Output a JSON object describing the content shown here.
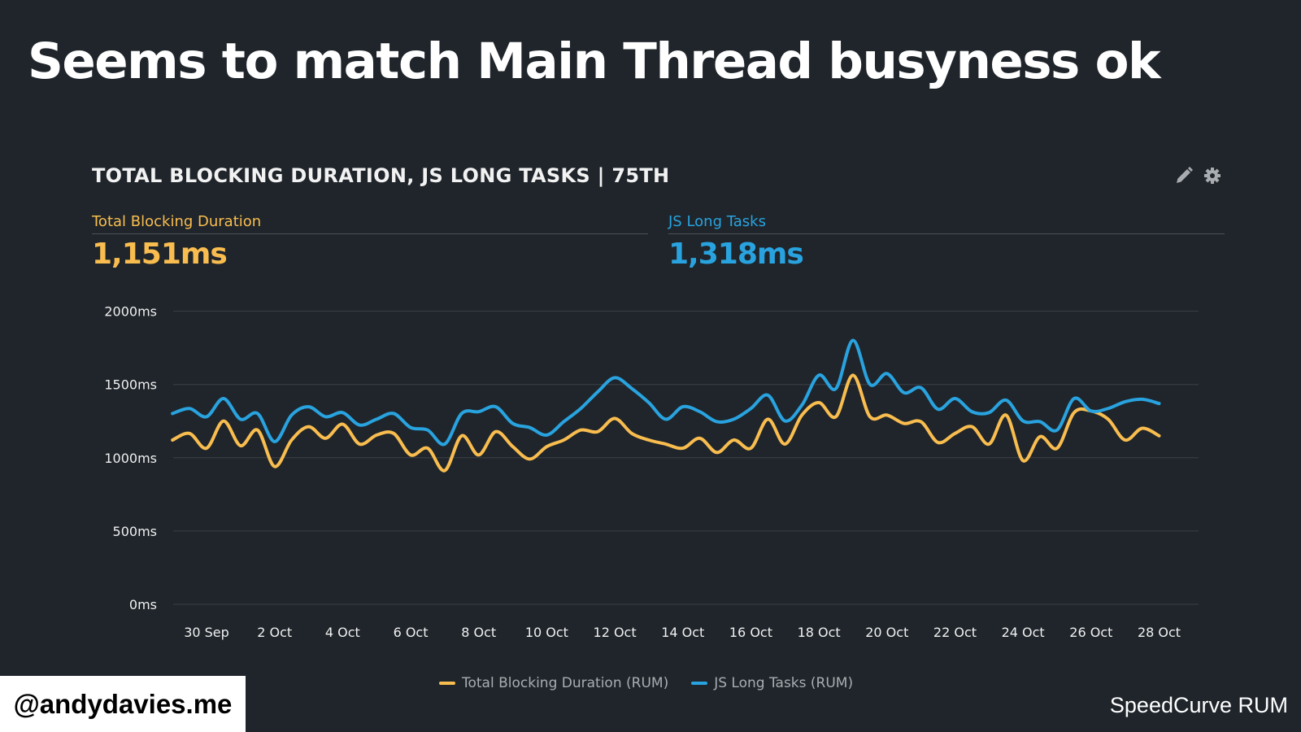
{
  "slide": {
    "title": "Seems to match Main Thread busyness ok",
    "handle": "@andydavies.me",
    "brand": "SpeedCurve RUM"
  },
  "card": {
    "title": "TOTAL BLOCKING DURATION, JS LONG TASKS | 75TH",
    "icons": [
      "pencil-icon",
      "gear-icon"
    ],
    "metrics": [
      {
        "label": "Total Blocking Duration",
        "value": "1,151ms",
        "color": "#f9bd4f"
      },
      {
        "label": "JS Long Tasks",
        "value": "1,318ms",
        "color": "#29a3df"
      }
    ]
  },
  "chart_data": {
    "type": "line",
    "title": "TOTAL BLOCKING DURATION, JS LONG TASKS | 75TH",
    "ylim": [
      0,
      2000
    ],
    "y_ticks": [
      "0ms",
      "500ms",
      "1000ms",
      "1500ms",
      "2000ms"
    ],
    "y_tick_values": [
      0,
      500,
      1000,
      1500,
      2000
    ],
    "x_ticks": [
      "30 Sep",
      "2 Oct",
      "4 Oct",
      "6 Oct",
      "8 Oct",
      "10 Oct",
      "12 Oct",
      "14 Oct",
      "16 Oct",
      "18 Oct",
      "20 Oct",
      "22 Oct",
      "24 Oct",
      "26 Oct",
      "28 Oct"
    ],
    "grid": true,
    "legend": "bottom",
    "x": [
      "29 Sep 00:00",
      "29 Sep 12:00",
      "30 Sep 00:00",
      "30 Sep 12:00",
      "1 Oct 00:00",
      "1 Oct 12:00",
      "2 Oct 00:00",
      "2 Oct 12:00",
      "3 Oct 00:00",
      "3 Oct 12:00",
      "4 Oct 00:00",
      "4 Oct 12:00",
      "5 Oct 00:00",
      "5 Oct 12:00",
      "6 Oct 00:00",
      "6 Oct 12:00",
      "7 Oct 00:00",
      "7 Oct 12:00",
      "8 Oct 00:00",
      "8 Oct 12:00",
      "9 Oct 00:00",
      "9 Oct 12:00",
      "10 Oct 00:00",
      "10 Oct 12:00",
      "11 Oct 00:00",
      "11 Oct 12:00",
      "12 Oct 00:00",
      "12 Oct 12:00",
      "13 Oct 00:00",
      "13 Oct 12:00",
      "14 Oct 00:00",
      "14 Oct 12:00",
      "15 Oct 00:00",
      "15 Oct 12:00",
      "16 Oct 00:00",
      "16 Oct 12:00",
      "17 Oct 00:00",
      "17 Oct 12:00",
      "18 Oct 00:00",
      "18 Oct 12:00",
      "19 Oct 00:00",
      "19 Oct 12:00",
      "20 Oct 00:00",
      "20 Oct 12:00",
      "21 Oct 00:00",
      "21 Oct 12:00",
      "22 Oct 00:00",
      "22 Oct 12:00",
      "23 Oct 00:00",
      "23 Oct 12:00",
      "24 Oct 00:00",
      "24 Oct 12:00",
      "25 Oct 00:00",
      "25 Oct 12:00",
      "26 Oct 00:00",
      "26 Oct 12:00",
      "27 Oct 00:00",
      "27 Oct 12:00",
      "28 Oct 00:00"
    ],
    "series": [
      {
        "name": "Total Blocking Duration (RUM)",
        "color": "#f9bd4f",
        "values": [
          1121,
          1166,
          1065,
          1251,
          1082,
          1189,
          940,
          1121,
          1212,
          1133,
          1229,
          1093,
          1155,
          1166,
          1019,
          1065,
          912,
          1150,
          1019,
          1178,
          1076,
          991,
          1076,
          1121,
          1189,
          1178,
          1268,
          1166,
          1121,
          1093,
          1065,
          1133,
          1036,
          1121,
          1065,
          1263,
          1093,
          1291,
          1376,
          1280,
          1563,
          1280,
          1291,
          1234,
          1246,
          1104,
          1166,
          1212,
          1093,
          1291,
          980,
          1144,
          1065,
          1308,
          1319,
          1263,
          1121,
          1201,
          1150
        ]
      },
      {
        "name": "JS Long Tasks (RUM)",
        "color": "#29a3df",
        "values": [
          1302,
          1336,
          1280,
          1404,
          1263,
          1302,
          1110,
          1291,
          1348,
          1280,
          1308,
          1223,
          1263,
          1302,
          1206,
          1189,
          1093,
          1302,
          1314,
          1348,
          1234,
          1206,
          1155,
          1246,
          1336,
          1450,
          1546,
          1472,
          1376,
          1263,
          1348,
          1314,
          1246,
          1263,
          1336,
          1427,
          1251,
          1359,
          1563,
          1472,
          1801,
          1501,
          1574,
          1444,
          1478,
          1331,
          1404,
          1314,
          1308,
          1393,
          1251,
          1246,
          1189,
          1404,
          1319,
          1336,
          1382,
          1399,
          1370
        ]
      }
    ]
  }
}
